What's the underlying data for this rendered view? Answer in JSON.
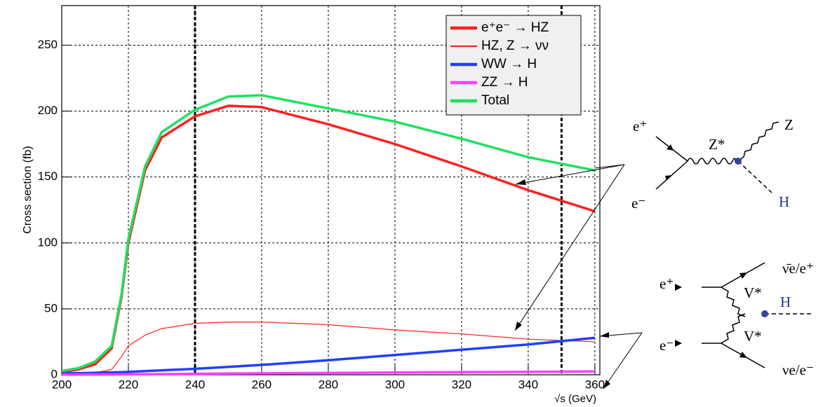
{
  "chart_data": {
    "type": "line",
    "ylabel": "Cross section (fb)",
    "xlabel": "√s (GeV)",
    "xlim": [
      200,
      361.5
    ],
    "ylim": [
      0,
      280
    ],
    "xticks": [
      200,
      220,
      240,
      260,
      280,
      300,
      320,
      340,
      360
    ],
    "yticks": [
      0,
      50,
      100,
      150,
      200,
      250
    ],
    "grid": true,
    "legend": "upper right",
    "vlines": [
      240,
      350
    ],
    "x": [
      200,
      205,
      210,
      215,
      218,
      220,
      225,
      230,
      240,
      250,
      260,
      280,
      300,
      320,
      340,
      360
    ],
    "series": [
      {
        "name": "e⁺e⁻ → HZ",
        "color": "#ff2020",
        "width": 3.5,
        "values": [
          2,
          4,
          8,
          20,
          60,
          100,
          155,
          180,
          196,
          204,
          203,
          190,
          175,
          158,
          140,
          124
        ]
      },
      {
        "name": "HZ, Z → νν",
        "color": "#ff2020",
        "width": 1.2,
        "values": [
          0.4,
          0.8,
          1.6,
          4,
          14,
          22,
          30,
          35,
          39,
          40,
          40,
          38,
          34,
          31,
          27,
          25
        ]
      },
      {
        "name": "WW → H",
        "color": "#2040ff",
        "width": 3.5,
        "values": [
          1,
          1.2,
          1.5,
          1.8,
          2,
          2.2,
          2.8,
          3.4,
          4.5,
          6,
          7.5,
          11,
          15,
          19,
          23,
          28
        ]
      },
      {
        "name": "ZZ → H",
        "color": "#ff40ff",
        "width": 3.5,
        "values": [
          0.1,
          0.1,
          0.2,
          0.2,
          0.3,
          0.3,
          0.4,
          0.5,
          0.7,
          0.9,
          1.1,
          1.4,
          1.7,
          2,
          2.2,
          2.5
        ]
      },
      {
        "name": "Total",
        "color": "#20e060",
        "width": 3.5,
        "values": [
          3,
          5,
          10,
          22,
          62,
          103,
          158,
          184,
          201,
          211,
          212,
          202,
          192,
          179,
          165,
          155
        ]
      }
    ]
  },
  "diagrams": [
    {
      "labels": [
        "e⁺",
        "e⁻",
        "Z*",
        "Z",
        "H"
      ]
    },
    {
      "labels": [
        "e⁺",
        "e⁻",
        "V*",
        "V*",
        "H",
        "ν̄e/e⁺",
        "νe/e⁻"
      ]
    }
  ]
}
